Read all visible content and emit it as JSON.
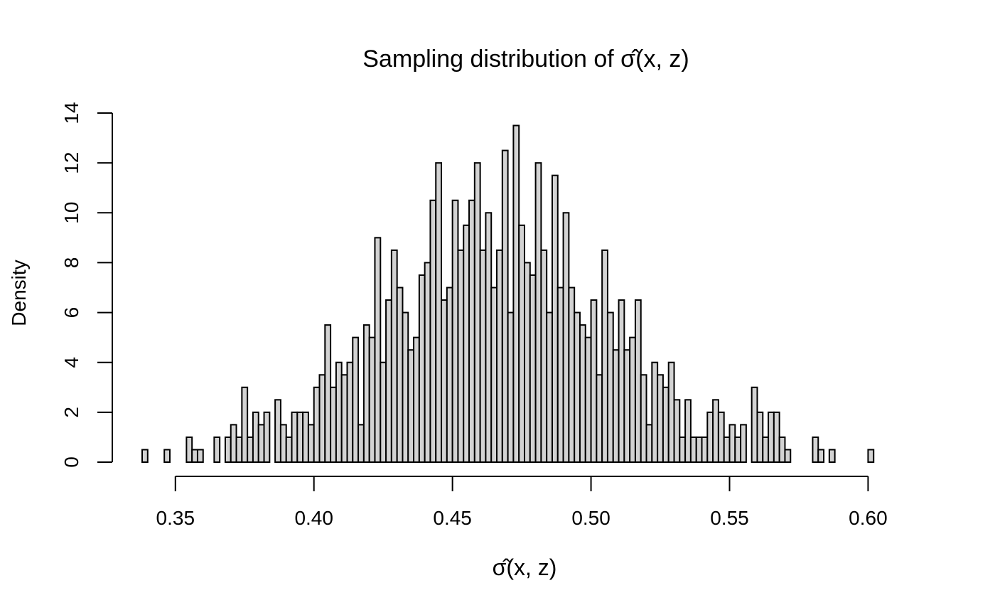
{
  "chart_data": {
    "type": "histogram",
    "title_prefix": "Sampling distribution of ",
    "title_symbol": "σ̂(x, z)",
    "xlabel": "σ̂(x, z)",
    "ylabel": "Density",
    "x_axis": {
      "ticks": [
        0.35,
        0.4,
        0.45,
        0.5,
        0.55,
        0.6
      ],
      "tick_labels": [
        "0.35",
        "0.40",
        "0.45",
        "0.50",
        "0.55",
        "0.60"
      ]
    },
    "y_axis": {
      "ticks": [
        0,
        2,
        4,
        6,
        8,
        10,
        12,
        14
      ],
      "tick_labels": [
        "0",
        "2",
        "4",
        "6",
        "8",
        "10",
        "12",
        "14"
      ]
    },
    "xlim": [
      0.338,
      0.614
    ],
    "ylim": [
      0,
      14
    ],
    "grid": false,
    "bar_fill": "#d3d3d3",
    "bar_stroke": "#000000",
    "bin_width": 0.002,
    "bin_start": 0.338,
    "densities": [
      0.5,
      0,
      0,
      0,
      0.5,
      0,
      0,
      0,
      1,
      0.5,
      0.5,
      0,
      0,
      1,
      0,
      1,
      1.5,
      1,
      3,
      1,
      2,
      1.5,
      2,
      0,
      2.5,
      1.5,
      1,
      2,
      2,
      2,
      1.5,
      3,
      3.5,
      5.5,
      3,
      4,
      3.5,
      4,
      5,
      1.5,
      5.5,
      5,
      9,
      4,
      6.5,
      8.5,
      7,
      6,
      4.5,
      5,
      7.5,
      8,
      10.5,
      12,
      6.5,
      7,
      10.5,
      8.5,
      9.5,
      10.5,
      12,
      8.5,
      10,
      7,
      8.5,
      12.5,
      6,
      13.5,
      9.5,
      8,
      7.5,
      12,
      8.5,
      6,
      11.5,
      7,
      10,
      7,
      6,
      5.5,
      5,
      6.5,
      3.5,
      8.5,
      6,
      4.5,
      6.5,
      4.5,
      5,
      6.5,
      3.5,
      1.5,
      4,
      3.5,
      3,
      4,
      2.5,
      1,
      2.5,
      1,
      1,
      1,
      2,
      2.5,
      2,
      1,
      1.5,
      1,
      1.5,
      0,
      3,
      2,
      1,
      2,
      2,
      1,
      0.5,
      0,
      0,
      0,
      0,
      1,
      0.5,
      0,
      0.5,
      0,
      0,
      0,
      0,
      0,
      0,
      0.5
    ]
  }
}
